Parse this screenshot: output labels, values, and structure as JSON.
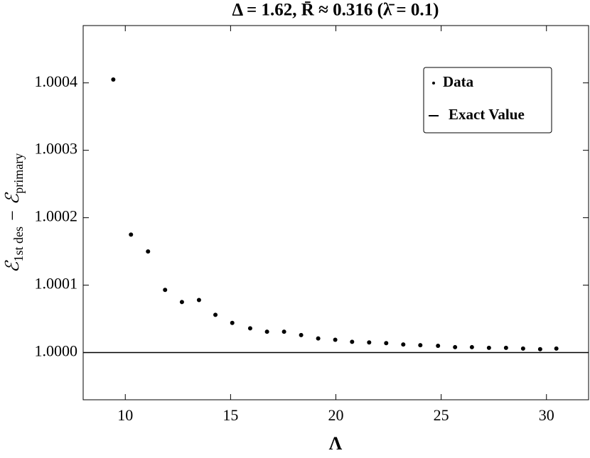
{
  "chart_data": {
    "type": "scatter",
    "title": "Δ = 1.62, R̄ ≈ 0.316 (λ̄ = 0.1)",
    "x_label": "Λ",
    "y_label": [
      "ℰ",
      "1st des",
      " − ℰ",
      "primary"
    ],
    "xlim": [
      8,
      32
    ],
    "ylim": [
      0.99993,
      1.000485
    ],
    "xticks": [
      10,
      15,
      20,
      25,
      30
    ],
    "yticks": [
      {
        "value": 1.0,
        "label": "1.0000"
      },
      {
        "value": 1.0001,
        "label": "1.0001"
      },
      {
        "value": 1.0002,
        "label": "1.0002"
      },
      {
        "value": 1.0003,
        "label": "1.0003"
      },
      {
        "value": 1.0004,
        "label": "1.0004"
      }
    ],
    "legend": "top-right",
    "series": [
      {
        "name": "Data",
        "color": "#000000",
        "x": [
          9.43,
          10.27,
          11.08,
          11.89,
          12.69,
          13.5,
          14.28,
          15.08,
          15.93,
          16.73,
          17.54,
          18.35,
          19.16,
          19.97,
          20.77,
          21.58,
          22.39,
          23.2,
          24.01,
          24.85,
          25.66,
          26.46,
          27.27,
          28.08,
          28.89,
          29.7,
          30.47
        ],
        "values": [
          1.000405,
          1.000175,
          1.00015,
          1.000093,
          1.000075,
          1.000078,
          1.000056,
          1.000044,
          1.000036,
          1.000031,
          1.000031,
          1.000026,
          1.000021,
          1.000019,
          1.000016,
          1.000015,
          1.000014,
          1.000012,
          1.000011,
          1.00001,
          1.000008,
          1.000008,
          1.000007,
          1.000007,
          1.000006,
          1.000005,
          1.000006
        ]
      }
    ],
    "reference_line": {
      "name": "Exact Value",
      "color": "#000000",
      "value": 1.0
    }
  }
}
